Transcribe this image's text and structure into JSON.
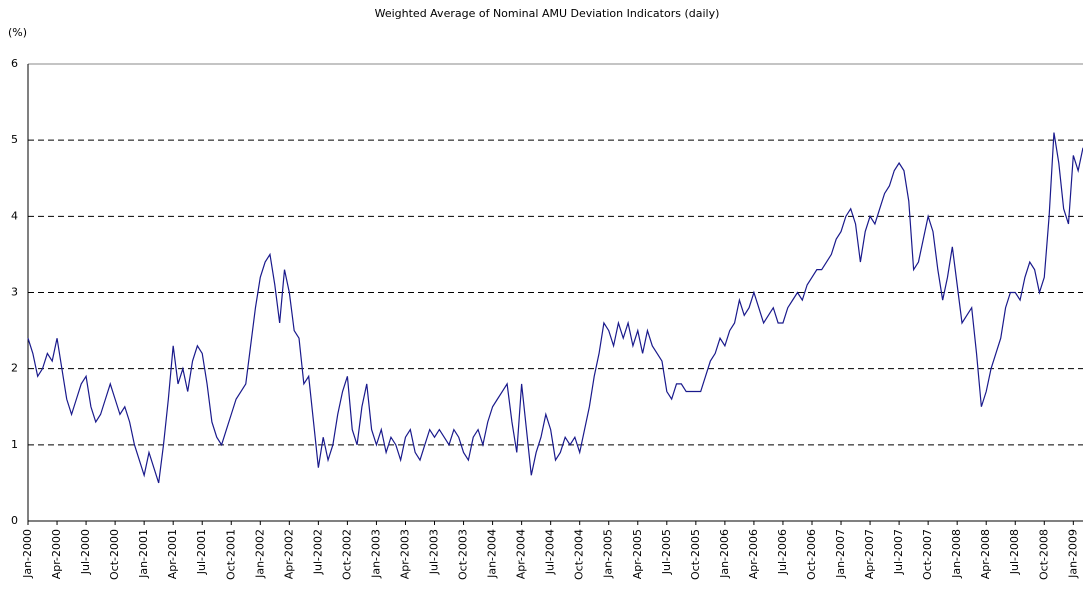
{
  "chart_data": {
    "type": "line",
    "title": "Weighted Average of Nominal AMU Deviation Indicators (daily)",
    "y_axis_label": "(%)",
    "categories": [
      "Jan-2000",
      null,
      null,
      null,
      null,
      null,
      "Apr-2000",
      null,
      null,
      null,
      null,
      null,
      "Jul-2000",
      null,
      null,
      null,
      null,
      null,
      "Oct-2000",
      null,
      null,
      null,
      null,
      null,
      "Jan-2001",
      null,
      null,
      null,
      null,
      null,
      "Apr-2001",
      null,
      null,
      null,
      null,
      null,
      "Jul-2001",
      null,
      null,
      null,
      null,
      null,
      "Oct-2001",
      null,
      null,
      null,
      null,
      null,
      "Jan-2002",
      null,
      null,
      null,
      null,
      null,
      "Apr-2002",
      null,
      null,
      null,
      null,
      null,
      "Jul-2002",
      null,
      null,
      null,
      null,
      null,
      "Oct-2002",
      null,
      null,
      null,
      null,
      null,
      "Jan-2003",
      null,
      null,
      null,
      null,
      null,
      "Apr-2003",
      null,
      null,
      null,
      null,
      null,
      "Jul-2003",
      null,
      null,
      null,
      null,
      null,
      "Oct-2003",
      null,
      null,
      null,
      null,
      null,
      "Jan-2004",
      null,
      null,
      null,
      null,
      null,
      "Apr-2004",
      null,
      null,
      null,
      null,
      null,
      "Jul-2004",
      null,
      null,
      null,
      null,
      null,
      "Oct-2004",
      null,
      null,
      null,
      null,
      null,
      "Jan-2005",
      null,
      null,
      null,
      null,
      null,
      "Apr-2005",
      null,
      null,
      null,
      null,
      null,
      "Jul-2005",
      null,
      null,
      null,
      null,
      null,
      "Oct-2005",
      null,
      null,
      null,
      null,
      null,
      "Jan-2006",
      null,
      null,
      null,
      null,
      null,
      "Apr-2006",
      null,
      null,
      null,
      null,
      null,
      "Jul-2006",
      null,
      null,
      null,
      null,
      null,
      "Oct-2006",
      null,
      null,
      null,
      null,
      null,
      "Jan-2007",
      null,
      null,
      null,
      null,
      null,
      "Apr-2007",
      null,
      null,
      null,
      null,
      null,
      "Jul-2007",
      null,
      null,
      null,
      null,
      null,
      "Oct-2007",
      null,
      null,
      null,
      null,
      null,
      "Jan-2008",
      null,
      null,
      null,
      null,
      null,
      "Apr-2008",
      null,
      null,
      null,
      null,
      null,
      "Jul-2008",
      null,
      null,
      null,
      null,
      null,
      "Oct-2008",
      null,
      null,
      null,
      null,
      null,
      "Jan-2009",
      null,
      null
    ],
    "values": [
      2.4,
      2.2,
      1.9,
      2.0,
      2.2,
      2.1,
      2.4,
      2.0,
      1.6,
      1.4,
      1.6,
      1.8,
      1.9,
      1.5,
      1.3,
      1.4,
      1.6,
      1.8,
      1.6,
      1.4,
      1.5,
      1.3,
      1.0,
      0.8,
      0.6,
      0.9,
      0.7,
      0.5,
      1.0,
      1.6,
      2.3,
      1.8,
      2.0,
      1.7,
      2.1,
      2.3,
      2.2,
      1.8,
      1.3,
      1.1,
      1.0,
      1.2,
      1.4,
      1.6,
      1.7,
      1.8,
      2.3,
      2.8,
      3.2,
      3.4,
      3.5,
      3.1,
      2.6,
      3.3,
      3.0,
      2.5,
      2.4,
      1.8,
      1.9,
      1.3,
      0.7,
      1.1,
      0.8,
      1.0,
      1.4,
      1.7,
      1.9,
      1.2,
      1.0,
      1.5,
      1.8,
      1.2,
      1.0,
      1.2,
      0.9,
      1.1,
      1.0,
      0.8,
      1.1,
      1.2,
      0.9,
      0.8,
      1.0,
      1.2,
      1.1,
      1.2,
      1.1,
      1.0,
      1.2,
      1.1,
      0.9,
      0.8,
      1.1,
      1.2,
      1.0,
      1.3,
      1.5,
      1.6,
      1.7,
      1.8,
      1.3,
      0.9,
      1.8,
      1.2,
      0.6,
      0.9,
      1.1,
      1.4,
      1.2,
      0.8,
      0.9,
      1.1,
      1.0,
      1.1,
      0.9,
      1.2,
      1.5,
      1.9,
      2.2,
      2.6,
      2.5,
      2.3,
      2.6,
      2.4,
      2.6,
      2.3,
      2.5,
      2.2,
      2.5,
      2.3,
      2.2,
      2.1,
      1.7,
      1.6,
      1.8,
      1.8,
      1.7,
      1.7,
      1.7,
      1.7,
      1.9,
      2.1,
      2.2,
      2.4,
      2.3,
      2.5,
      2.6,
      2.9,
      2.7,
      2.8,
      3.0,
      2.8,
      2.6,
      2.7,
      2.8,
      2.6,
      2.6,
      2.8,
      2.9,
      3.0,
      2.9,
      3.1,
      3.2,
      3.3,
      3.3,
      3.4,
      3.5,
      3.7,
      3.8,
      4.0,
      4.1,
      3.9,
      3.4,
      3.8,
      4.0,
      3.9,
      4.1,
      4.3,
      4.4,
      4.6,
      4.7,
      4.6,
      4.2,
      3.3,
      3.4,
      3.7,
      4.0,
      3.8,
      3.3,
      2.9,
      3.2,
      3.6,
      3.1,
      2.6,
      2.7,
      2.8,
      2.2,
      1.5,
      1.7,
      2.0,
      2.2,
      2.4,
      2.8,
      3.0,
      3.0,
      2.9,
      3.2,
      3.4,
      3.3,
      3.0,
      3.2,
      4.0,
      5.1,
      4.7,
      4.1,
      3.9,
      4.8,
      4.6,
      4.9
    ],
    "color": "#1a1a8c",
    "ylim": [
      0,
      6
    ],
    "yticks": [
      0,
      1,
      2,
      3,
      4,
      5,
      6
    ],
    "grid": true
  }
}
